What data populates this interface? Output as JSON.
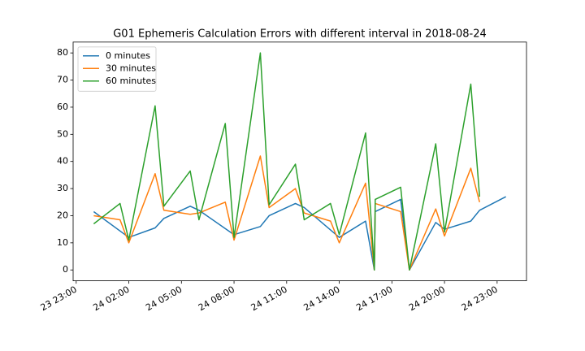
{
  "chart_data": {
    "type": "line",
    "title": "G01 Ephemeris Calculation Errors with different interval in 2018-08-24",
    "legend": "upper left",
    "xlim": [
      -1.175,
      24.675
    ],
    "xticks": [
      {
        "value": -1,
        "label": "23 23:00"
      },
      {
        "value": 2,
        "label": "24 02:00"
      },
      {
        "value": 5,
        "label": "24 05:00"
      },
      {
        "value": 8,
        "label": "24 08:00"
      },
      {
        "value": 11,
        "label": "24 11:00"
      },
      {
        "value": 14,
        "label": "24 14:00"
      },
      {
        "value": 17,
        "label": "24 17:00"
      },
      {
        "value": 20,
        "label": "24 20:00"
      },
      {
        "value": 23,
        "label": "24 23:00"
      }
    ],
    "ylim": [
      -4,
      84
    ],
    "yticks": [
      0,
      10,
      20,
      30,
      40,
      50,
      60,
      70,
      80
    ],
    "series": [
      {
        "name": "0 minutes",
        "color": "#1f77b4",
        "x": [
          0,
          2,
          3.5,
          4,
          5.5,
          6,
          8,
          9.5,
          10,
          11.5,
          12,
          14,
          15.5,
          16,
          16.05,
          17.5,
          18,
          19.5,
          20,
          21.5,
          22,
          23.5
        ],
        "values": [
          21.5,
          12,
          15.5,
          19,
          23.5,
          22,
          13,
          16,
          20,
          24.5,
          23,
          12,
          18,
          0,
          21.5,
          26,
          0,
          17.5,
          15,
          18,
          22,
          27
        ]
      },
      {
        "name": "30 minutes",
        "color": "#ff7f0e",
        "x": [
          0,
          1.5,
          2,
          3.5,
          4,
          5.5,
          6,
          7.5,
          8,
          9.5,
          10,
          11.5,
          12,
          13.5,
          14,
          15.5,
          16,
          16.05,
          17.5,
          18,
          19.5,
          20,
          21.5,
          22
        ],
        "values": [
          20,
          18.5,
          10,
          35.5,
          22,
          20.5,
          21,
          25,
          11,
          42,
          23,
          30,
          21,
          18,
          10,
          32,
          0,
          24.5,
          21.5,
          0,
          22.5,
          12.5,
          37.5,
          25
        ]
      },
      {
        "name": "60 minutes",
        "color": "#2ca02c",
        "x": [
          0,
          1.5,
          2,
          3.5,
          4,
          5.5,
          6,
          7.5,
          8,
          9.5,
          10,
          11.5,
          12,
          13.5,
          14,
          15.5,
          16,
          16.05,
          17.5,
          18,
          19.5,
          20,
          21.5,
          22
        ],
        "values": [
          17,
          24.5,
          11,
          60.5,
          23.5,
          36.5,
          18.5,
          54,
          12,
          80,
          24,
          39,
          18.5,
          24.5,
          13,
          50.5,
          0,
          26,
          30.5,
          0,
          46.5,
          14,
          68.5,
          27
        ]
      }
    ]
  }
}
